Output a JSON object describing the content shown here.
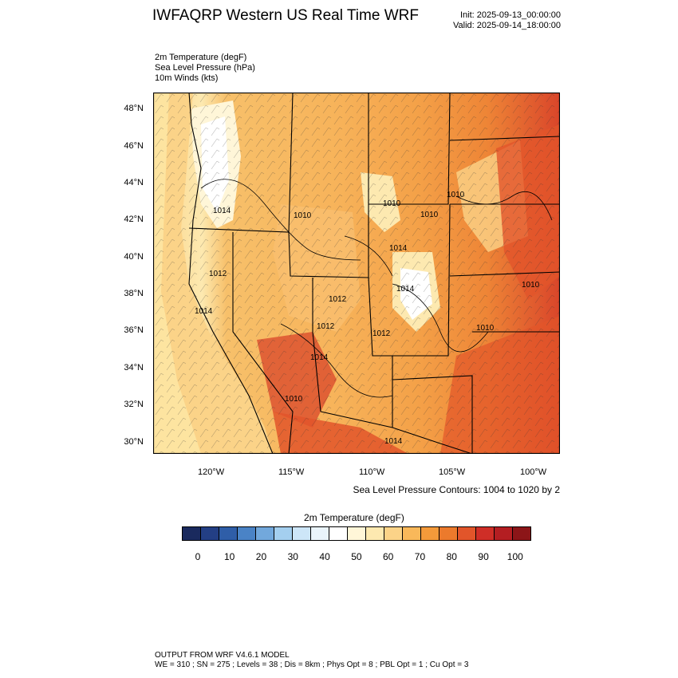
{
  "header": {
    "title": "IWFAQRP Western US Real Time WRF",
    "init": "Init: 2025-09-13_00:00:00",
    "valid": "Valid: 2025-09-14_18:00:00"
  },
  "fields": [
    "2m Temperature   (degF)",
    "Sea Level Pressure   (hPa)",
    "10m Winds   (kts)"
  ],
  "map": {
    "lat_labels": [
      "48°N",
      "46°N",
      "44°N",
      "42°N",
      "40°N",
      "38°N",
      "36°N",
      "34°N",
      "32°N",
      "30°N"
    ],
    "lon_labels": [
      "120°W",
      "115°W",
      "110°W",
      "105°W",
      "100°W"
    ],
    "pressure_labels": [
      "1014",
      "1010",
      "1012",
      "1010",
      "1010",
      "1010",
      "1014",
      "1014",
      "1012",
      "1014",
      "1012",
      "1010",
      "1010",
      "1012",
      "1014",
      "1010",
      "1014"
    ],
    "contour_note": "Sea Level Pressure Contours: 1004 to 1020 by 2"
  },
  "colorbar": {
    "title": "2m Temperature  (degF)",
    "labels": [
      "0",
      "10",
      "20",
      "30",
      "40",
      "50",
      "60",
      "70",
      "80",
      "90",
      "100"
    ],
    "colors": [
      "#1a2a5e",
      "#233f85",
      "#2f5ea8",
      "#4a83c6",
      "#72a8dc",
      "#a4cfef",
      "#cde6f8",
      "#eaf4fb",
      "#ffffff",
      "#fff6d8",
      "#fde9b0",
      "#fbd388",
      "#f9b85a",
      "#f49a3a",
      "#ec7a2c",
      "#e2552a",
      "#cf2e27",
      "#b41e22",
      "#8c1518"
    ]
  },
  "footer": {
    "line1": "OUTPUT FROM WRF V4.6.1 MODEL",
    "line2": "WE = 310 ; SN = 275 ; Levels = 38 ; Dis = 8km ; Phys Opt = 8 ; PBL Opt = 1 ; Cu Opt = 3"
  }
}
